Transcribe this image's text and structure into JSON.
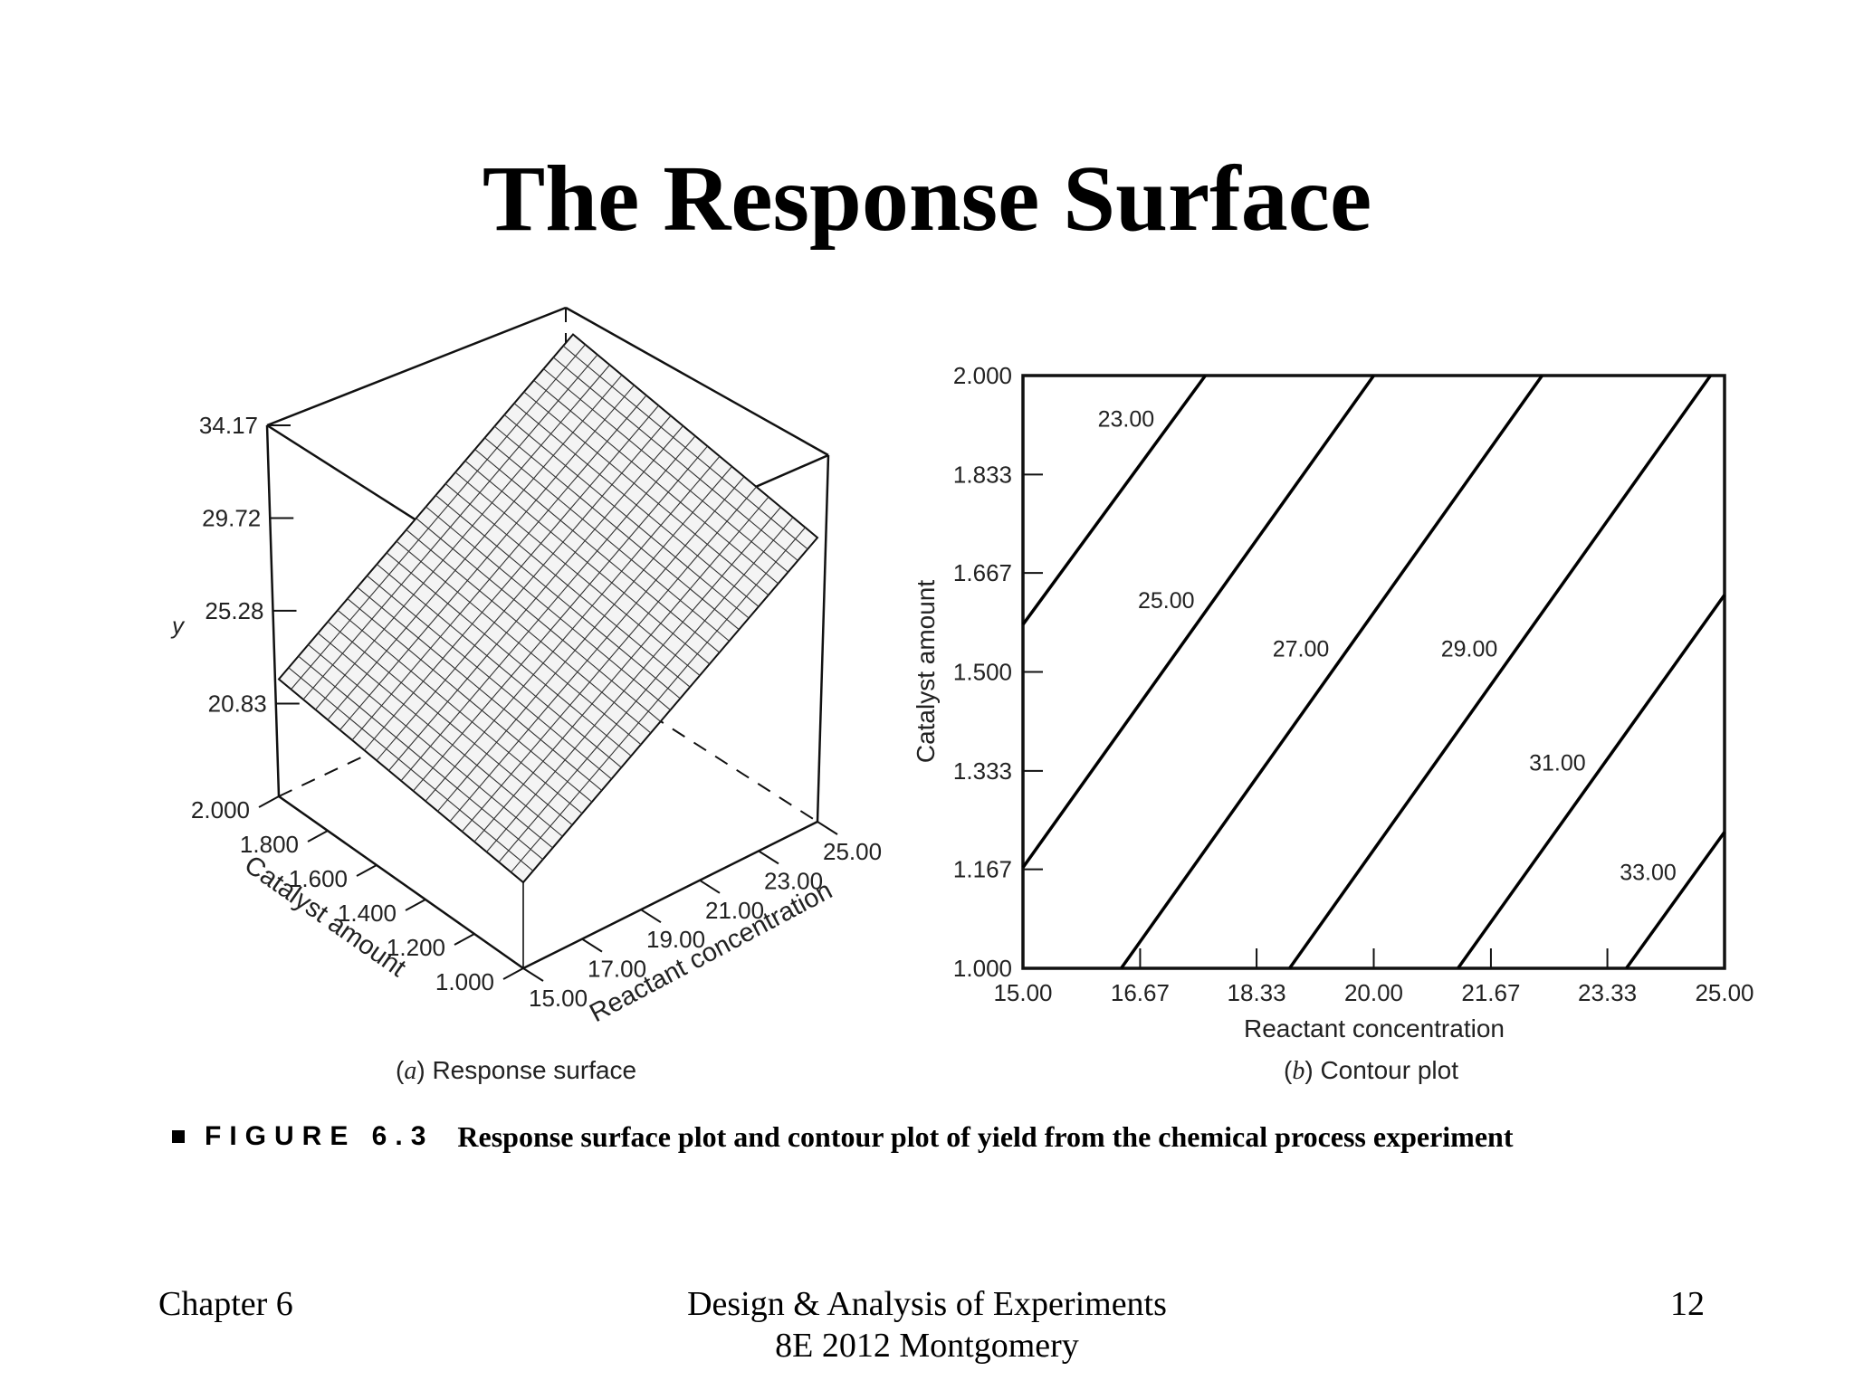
{
  "slide": {
    "title": "The Response Surface",
    "caption_label": "FIGURE 6.3",
    "caption_text": "Response surface plot and contour plot of yield from the chemical process experiment",
    "footer_left": "Chapter 6",
    "footer_center_line1": "Design & Analysis of Experiments",
    "footer_center_line2": "8E 2012 Montgomery",
    "footer_right": "12"
  },
  "chart_data": [
    {
      "type": "surface",
      "subtitle_letter": "a",
      "subtitle_text": "Response surface",
      "zlabel": "y",
      "xlabel": "Reactant concentration",
      "ylabel": "Catalyst amount",
      "z_ticks": [
        "34.17",
        "29.72",
        "25.28",
        "20.83"
      ],
      "x_ticks": [
        "15.00",
        "17.00",
        "19.00",
        "21.00",
        "23.00",
        "25.00"
      ],
      "y_ticks": [
        "1.000",
        "1.200",
        "1.400",
        "1.600",
        "1.800",
        "2.000"
      ],
      "xlim": [
        15,
        25
      ],
      "ylim": [
        1.0,
        2.0
      ],
      "zlim": [
        16.38,
        34.17
      ],
      "corner_values": [
        {
          "x": 15,
          "y": 1.0,
          "z": 20.5
        },
        {
          "x": 25,
          "y": 1.0,
          "z": 30.0
        },
        {
          "x": 15,
          "y": 2.0,
          "z": 22.0
        },
        {
          "x": 25,
          "y": 2.0,
          "z": 31.5
        }
      ],
      "grid_lines": [
        20,
        30
      ]
    },
    {
      "type": "contour",
      "subtitle_letter": "b",
      "subtitle_text": "Contour plot",
      "xlabel": "Reactant concentration",
      "ylabel": "Catalyst amount",
      "x_ticks": [
        "15.00",
        "16.67",
        "18.33",
        "20.00",
        "21.67",
        "23.33",
        "25.00"
      ],
      "y_ticks": [
        "1.000",
        "1.167",
        "1.333",
        "1.500",
        "1.667",
        "1.833",
        "2.000"
      ],
      "xlim": [
        15,
        25
      ],
      "ylim": [
        1.0,
        2.0
      ],
      "contours": [
        {
          "level": "23.00",
          "points": [
            [
              15.0,
              1.58
            ],
            [
              17.6,
              2.0
            ]
          ]
        },
        {
          "level": "25.00",
          "points": [
            [
              15.0,
              1.17
            ],
            [
              20.0,
              2.0
            ]
          ]
        },
        {
          "level": "27.00",
          "points": [
            [
              16.4,
              1.0
            ],
            [
              22.4,
              2.0
            ]
          ]
        },
        {
          "level": "29.00",
          "points": [
            [
              18.8,
              1.0
            ],
            [
              24.8,
              2.0
            ]
          ]
        },
        {
          "level": "31.00",
          "points": [
            [
              21.2,
              1.0
            ],
            [
              25.0,
              1.63
            ]
          ]
        },
        {
          "level": "33.00",
          "points": [
            [
              23.6,
              1.0
            ],
            [
              25.0,
              1.23
            ]
          ]
        }
      ]
    }
  ]
}
